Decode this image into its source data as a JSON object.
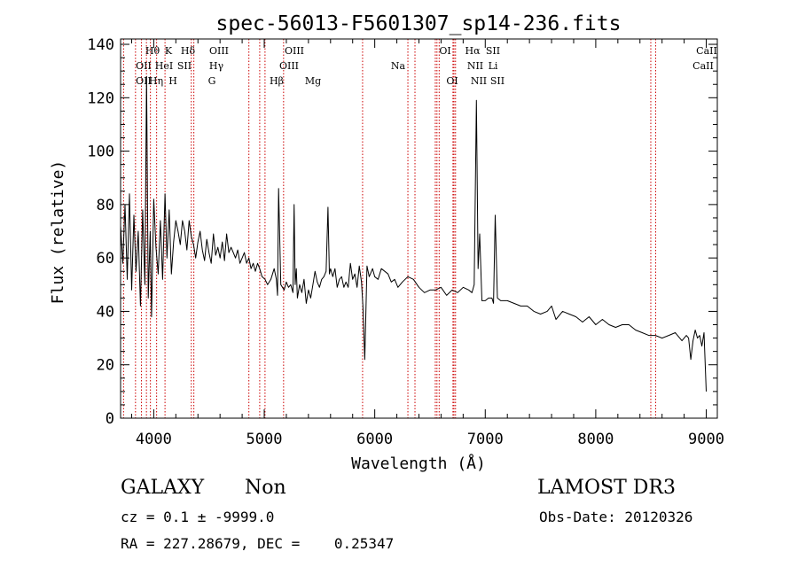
{
  "chart_data": {
    "type": "line",
    "title": "spec-56013-F5601307_sp14-236.fits",
    "xlabel": "Wavelength (Å)",
    "ylabel": "Flux (relative)",
    "xlim": [
      3700,
      9100
    ],
    "ylim": [
      0,
      142
    ],
    "xticks": [
      4000,
      5000,
      6000,
      7000,
      8000,
      9000
    ],
    "yticks": [
      0,
      20,
      40,
      60,
      80,
      100,
      120,
      140
    ],
    "series": [
      {
        "name": "spectrum",
        "x": [
          3700,
          3720,
          3740,
          3760,
          3780,
          3800,
          3820,
          3840,
          3860,
          3880,
          3900,
          3920,
          3935,
          3950,
          3968,
          3980,
          4000,
          4020,
          4040,
          4060,
          4080,
          4102,
          4120,
          4140,
          4160,
          4180,
          4200,
          4220,
          4240,
          4260,
          4280,
          4300,
          4320,
          4340,
          4360,
          4380,
          4400,
          4420,
          4440,
          4460,
          4480,
          4500,
          4520,
          4540,
          4560,
          4580,
          4600,
          4620,
          4640,
          4660,
          4680,
          4700,
          4720,
          4740,
          4760,
          4780,
          4800,
          4820,
          4840,
          4861,
          4880,
          4900,
          4920,
          4940,
          4959,
          4980,
          5007,
          5030,
          5060,
          5090,
          5110,
          5120,
          5130,
          5150,
          5180,
          5200,
          5220,
          5240,
          5260,
          5270,
          5280,
          5290,
          5300,
          5320,
          5340,
          5360,
          5380,
          5400,
          5420,
          5440,
          5460,
          5480,
          5500,
          5520,
          5540,
          5560,
          5577,
          5590,
          5600,
          5620,
          5640,
          5660,
          5680,
          5700,
          5720,
          5740,
          5760,
          5780,
          5800,
          5820,
          5840,
          5860,
          5880,
          5893,
          5910,
          5930,
          5950,
          5980,
          6000,
          6030,
          6060,
          6090,
          6120,
          6150,
          6180,
          6210,
          6250,
          6300,
          6350,
          6400,
          6450,
          6500,
          6550,
          6600,
          6650,
          6700,
          6750,
          6800,
          6850,
          6880,
          6900,
          6920,
          6935,
          6950,
          6970,
          7000,
          7030,
          7060,
          7075,
          7090,
          7110,
          7140,
          7200,
          7260,
          7320,
          7380,
          7440,
          7500,
          7560,
          7600,
          7640,
          7700,
          7760,
          7820,
          7880,
          7940,
          8000,
          8060,
          8120,
          8180,
          8240,
          8300,
          8360,
          8420,
          8480,
          8540,
          8600,
          8660,
          8720,
          8780,
          8820,
          8840,
          8860,
          8880,
          8900,
          8920,
          8940,
          8960,
          8980,
          9000
        ],
        "values": [
          72,
          58,
          80,
          52,
          84,
          48,
          76,
          55,
          70,
          42,
          78,
          50,
          128,
          45,
          70,
          38,
          82,
          64,
          54,
          74,
          52,
          84,
          60,
          78,
          54,
          66,
          74,
          70,
          65,
          74,
          70,
          63,
          74,
          68,
          65,
          60,
          66,
          70,
          63,
          59,
          67,
          62,
          58,
          69,
          61,
          64,
          60,
          66,
          59,
          69,
          62,
          64,
          62,
          60,
          63,
          58,
          60,
          62,
          58,
          60,
          56,
          58,
          55,
          58,
          56,
          53,
          52,
          50,
          52,
          56,
          52,
          46,
          86,
          50,
          48,
          51,
          49,
          50,
          47,
          80,
          50,
          56,
          45,
          50,
          47,
          52,
          43,
          48,
          45,
          50,
          55,
          51,
          49,
          52,
          53,
          55,
          79,
          54,
          56,
          53,
          56,
          49,
          52,
          53,
          49,
          51,
          49,
          58,
          52,
          54,
          49,
          57,
          51,
          42,
          22,
          57,
          53,
          56,
          53,
          52,
          56,
          55,
          54,
          51,
          52,
          49,
          51,
          53,
          52,
          49,
          47,
          48,
          48,
          49,
          46,
          48,
          47,
          49,
          48,
          47,
          50,
          119,
          56,
          69,
          44,
          44,
          45,
          45,
          43,
          76,
          45,
          44,
          44,
          43,
          42,
          42,
          40,
          39,
          40,
          42,
          37,
          40,
          39,
          38,
          36,
          38,
          35,
          37,
          35,
          34,
          35,
          35,
          33,
          32,
          31,
          31,
          30,
          31,
          32,
          29,
          31,
          30,
          22,
          29,
          33,
          30,
          31,
          27,
          32,
          10
        ]
      }
    ],
    "line_ids": {
      "rows": [
        [
          "Hθ",
          "K",
          "Hδ",
          "OIII",
          "OIII",
          "OI",
          "Hα",
          "SII",
          "CaII"
        ],
        [
          "OII",
          "HeI",
          "SII",
          "Hγ",
          "OIII",
          "Na",
          "NII",
          "Li",
          "CaII"
        ],
        [
          "OII",
          "Hη",
          "H",
          "G",
          "Hβ",
          "Mg",
          "OI",
          "NII",
          "SII"
        ]
      ]
    },
    "line_wavelengths": [
      3727,
      3835,
      3889,
      3934,
      3970,
      4026,
      4102,
      4340,
      4363,
      4861,
      4959,
      5007,
      5175,
      5890,
      6300,
      6364,
      6548,
      6563,
      6583,
      6708,
      6717,
      6731,
      8498,
      8542
    ]
  },
  "info": {
    "object_class": "GALAXY",
    "subclass": "Non",
    "redshift_line": "cz = 0.1 ± -9999.0",
    "coords_line": "RA = 227.28679, DEC =    0.25347",
    "survey": "LAMOST DR3",
    "obs_date": "Obs-Date: 20120326"
  },
  "colors": {
    "spectrum": "#000000",
    "line_markers": "#cc0000",
    "axis": "#000000"
  }
}
